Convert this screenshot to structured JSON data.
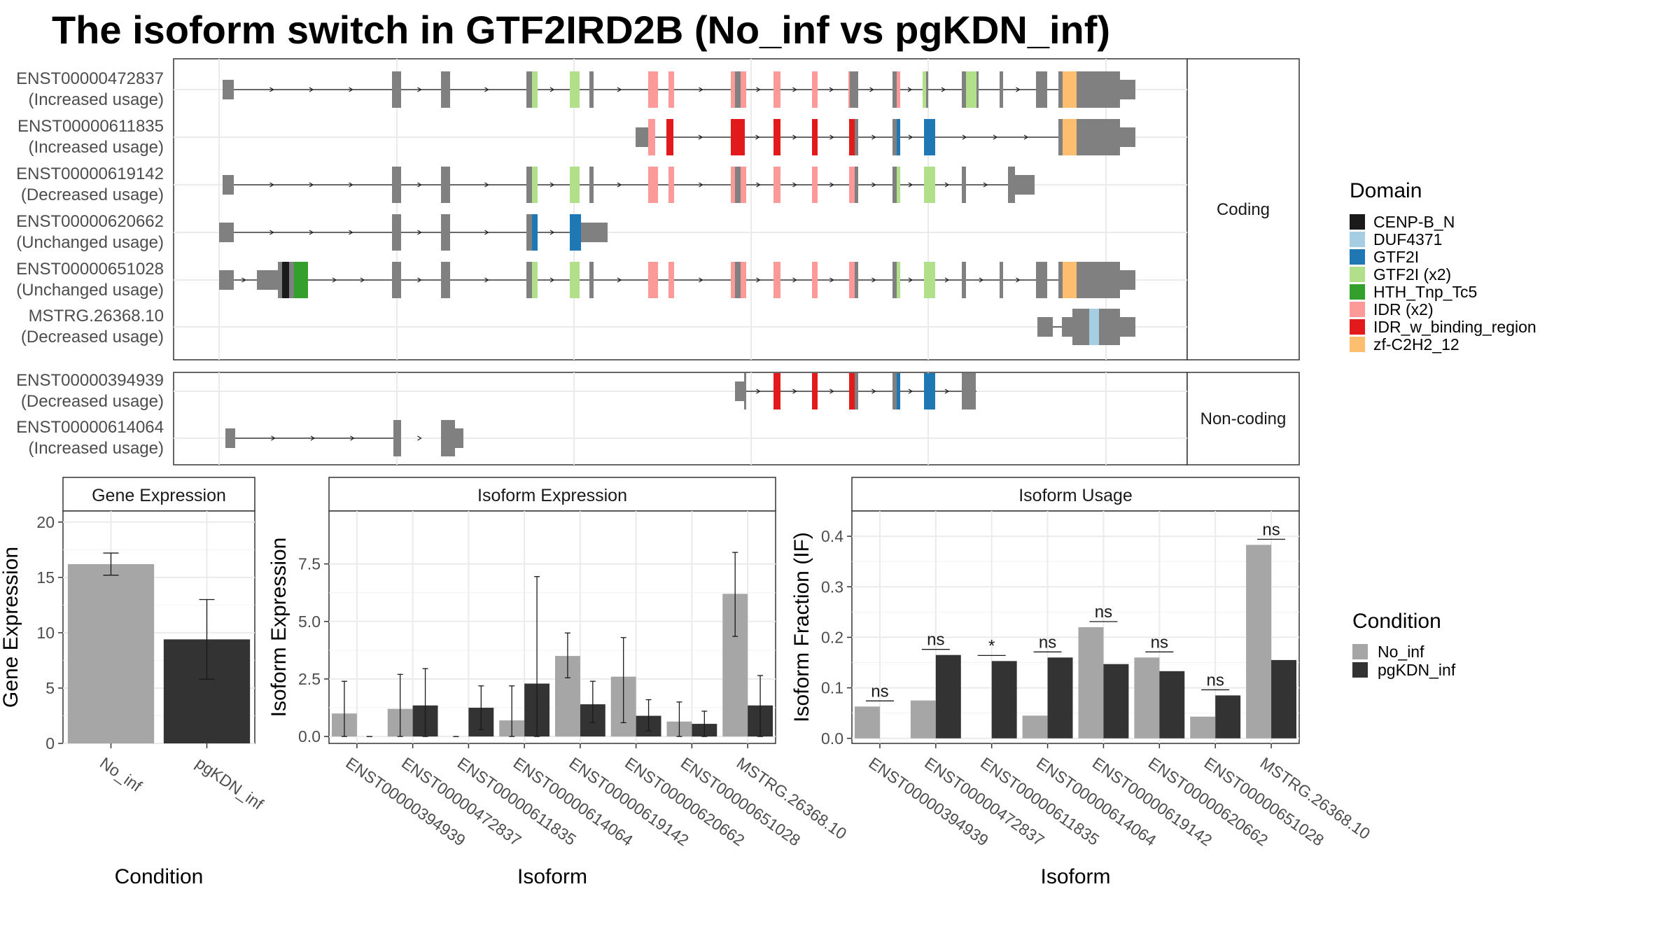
{
  "title": "The isoform switch in GTF2IRD2B (No_inf vs pgKDN_inf)",
  "colors": {
    "exon": "#808080",
    "no_inf": "#a6a6a6",
    "pgkdn_inf": "#333333",
    "domains": {
      "CENP-B_N": "#1a1a1a",
      "DUF4371": "#a6cee3",
      "GTF2I": "#1f78b4",
      "GTF2I (x2)": "#b2df8a",
      "HTH_Tnp_Tc5": "#33a02c",
      "IDR (x2)": "#fb9a99",
      "IDR_w_binding_region": "#e31a1c",
      "zf-C2H2_12": "#fdbf6f"
    }
  },
  "structure": {
    "panels": [
      {
        "label": "Coding",
        "transcripts": [
          {
            "id": "ENST00000472837",
            "usage": "(Increased usage)"
          },
          {
            "id": "ENST00000611835",
            "usage": "(Increased usage)"
          },
          {
            "id": "ENST00000619142",
            "usage": "(Decreased usage)"
          },
          {
            "id": "ENST00000620662",
            "usage": "(Unchanged usage)"
          },
          {
            "id": "ENST00000651028",
            "usage": "(Unchanged usage)"
          },
          {
            "id": "MSTRG.26368.10",
            "usage": "(Decreased usage)"
          }
        ]
      },
      {
        "label": "Non-coding",
        "transcripts": [
          {
            "id": "ENST00000394939",
            "usage": "(Decreased usage)"
          },
          {
            "id": "ENST00000614064",
            "usage": "(Increased usage)"
          }
        ]
      }
    ],
    "legend_title": "Domain",
    "legend_items": [
      "CENP-B_N",
      "DUF4371",
      "GTF2I",
      "GTF2I (x2)",
      "HTH_Tnp_Tc5",
      "IDR (x2)",
      "IDR_w_binding_region",
      "zf-C2H2_12"
    ]
  },
  "chart_data": [
    {
      "type": "bar",
      "title": "Gene Expression",
      "xlabel": "Condition",
      "ylabel": "Gene Expression",
      "ylim": [
        0,
        21
      ],
      "yticks": [
        0,
        5,
        10,
        15,
        20
      ],
      "categories": [
        "No_inf",
        "pgKDN_inf"
      ],
      "values": [
        16.2,
        9.4
      ],
      "error_low": [
        15.2,
        5.8
      ],
      "error_high": [
        17.2,
        13.0
      ]
    },
    {
      "type": "bar",
      "title": "Isoform Expression",
      "xlabel": "Isoform",
      "ylabel": "Isoform Expression",
      "ylim": [
        -0.3,
        9.8
      ],
      "yticks": [
        "0.0",
        "2.5",
        "5.0",
        "7.5"
      ],
      "categories": [
        "ENST00000394939",
        "ENST00000472837",
        "ENST00000611835",
        "ENST00000614064",
        "ENST00000619142",
        "ENST00000620662",
        "ENST00000651028",
        "MSTRG.26368.10"
      ],
      "series": [
        {
          "name": "No_inf",
          "values": [
            1.0,
            1.2,
            0.0,
            0.7,
            3.5,
            2.6,
            0.65,
            6.2
          ],
          "error_low": [
            0.0,
            0.0,
            0.0,
            0.0,
            2.55,
            0.6,
            0.0,
            4.35
          ],
          "error_high": [
            2.4,
            2.7,
            0.0,
            2.2,
            4.5,
            4.3,
            1.5,
            8.0
          ]
        },
        {
          "name": "pgKDN_inf",
          "values": [
            0.0,
            1.35,
            1.25,
            2.3,
            1.4,
            0.9,
            0.55,
            1.35
          ],
          "error_low": [
            0.0,
            0.0,
            0.3,
            0.0,
            0.6,
            0.25,
            0.0,
            0.0
          ],
          "error_high": [
            0.0,
            2.95,
            2.2,
            6.95,
            2.4,
            1.6,
            1.1,
            2.65
          ]
        }
      ]
    },
    {
      "type": "bar",
      "title": "Isoform Usage",
      "xlabel": "Isoform",
      "ylabel": "Isoform Fraction (IF)",
      "ylim": [
        -0.01,
        0.45
      ],
      "yticks": [
        "0.0",
        "0.1",
        "0.2",
        "0.3",
        "0.4"
      ],
      "categories": [
        "ENST00000394939",
        "ENST00000472837",
        "ENST00000611835",
        "ENST00000614064",
        "ENST00000619142",
        "ENST00000620662",
        "ENST00000651028",
        "MSTRG.26368.10"
      ],
      "series": [
        {
          "name": "No_inf",
          "values": [
            0.063,
            0.075,
            0.0,
            0.045,
            0.22,
            0.16,
            0.043,
            0.383
          ]
        },
        {
          "name": "pgKDN_inf",
          "values": [
            0.0,
            0.165,
            0.153,
            0.16,
            0.147,
            0.133,
            0.085,
            0.155
          ]
        }
      ],
      "significance": [
        "ns",
        "ns",
        "*",
        "ns",
        "ns",
        "ns",
        "ns",
        "ns"
      ]
    }
  ],
  "condition_legend": {
    "title": "Condition",
    "items": [
      "No_inf",
      "pgKDN_inf"
    ]
  }
}
